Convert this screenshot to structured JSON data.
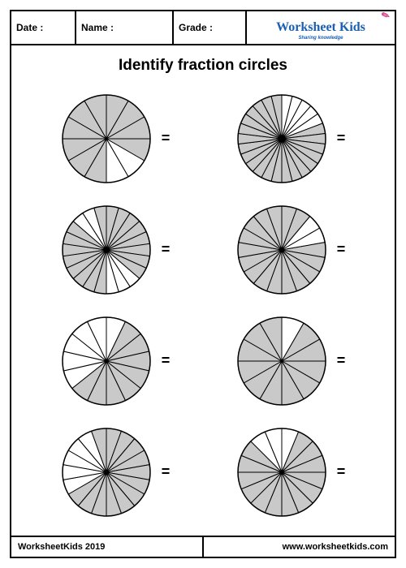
{
  "header": {
    "date_label": "Date :",
    "name_label": "Name :",
    "grade_label": "Grade :",
    "logo_text": "Worksheet Kids",
    "logo_subtitle": "Sharing knowledge"
  },
  "title": "Identify fraction circles",
  "equals_symbol": "=",
  "circles": [
    {
      "segments": 12,
      "radius": 54,
      "shaded_indices": [
        0,
        1,
        2,
        3,
        6,
        7,
        8,
        9,
        10,
        11
      ],
      "shaded_color": "#c9c9c9",
      "unshaded_color": "#ffffff",
      "stroke_color": "#000000",
      "stroke_width": 1
    },
    {
      "segments": 26,
      "radius": 54,
      "shaded_indices": [
        5,
        6,
        7,
        8,
        9,
        10,
        11,
        12,
        13,
        14,
        15,
        16,
        17,
        18,
        19,
        20,
        21,
        22,
        23,
        24,
        25
      ],
      "shaded_color": "#c9c9c9",
      "unshaded_color": "#ffffff",
      "stroke_color": "#000000",
      "stroke_width": 1
    },
    {
      "segments": 22,
      "radius": 54,
      "shaded_indices": [
        0,
        1,
        2,
        3,
        4,
        5,
        6,
        7,
        11,
        12,
        13,
        14,
        15,
        16,
        17,
        18,
        21
      ],
      "shaded_color": "#c9c9c9",
      "unshaded_color": "#ffffff",
      "stroke_color": "#000000",
      "stroke_width": 1
    },
    {
      "segments": 18,
      "radius": 54,
      "shaded_indices": [
        0,
        1,
        4,
        5,
        6,
        7,
        8,
        9,
        10,
        11,
        12,
        13,
        14,
        15,
        16,
        17
      ],
      "shaded_color": "#c9c9c9",
      "unshaded_color": "#ffffff",
      "stroke_color": "#000000",
      "stroke_width": 1
    },
    {
      "segments": 14,
      "radius": 54,
      "shaded_indices": [
        1,
        2,
        3,
        4,
        5,
        6,
        7,
        8
      ],
      "shaded_color": "#c9c9c9",
      "unshaded_color": "#ffffff",
      "stroke_color": "#000000",
      "stroke_width": 1
    },
    {
      "segments": 12,
      "radius": 54,
      "shaded_indices": [
        1,
        2,
        3,
        4,
        5,
        6,
        7,
        8,
        9,
        10,
        11
      ],
      "shaded_color": "#c9c9c9",
      "unshaded_color": "#ffffff",
      "stroke_color": "#000000",
      "stroke_width": 1
    },
    {
      "segments": 18,
      "radius": 54,
      "shaded_indices": [
        0,
        1,
        2,
        3,
        4,
        5,
        6,
        7,
        8,
        9,
        10,
        11,
        17
      ],
      "shaded_color": "#c9c9c9",
      "unshaded_color": "#ffffff",
      "stroke_color": "#000000",
      "stroke_width": 1
    },
    {
      "segments": 16,
      "radius": 54,
      "shaded_indices": [
        1,
        2,
        3,
        4,
        5,
        6,
        7,
        8,
        9,
        10,
        11,
        12,
        13
      ],
      "shaded_color": "#c9c9c9",
      "unshaded_color": "#ffffff",
      "stroke_color": "#000000",
      "stroke_width": 1
    }
  ],
  "footer": {
    "left": "WorksheetKids 2019",
    "right": "www.worksheetkids.com"
  }
}
